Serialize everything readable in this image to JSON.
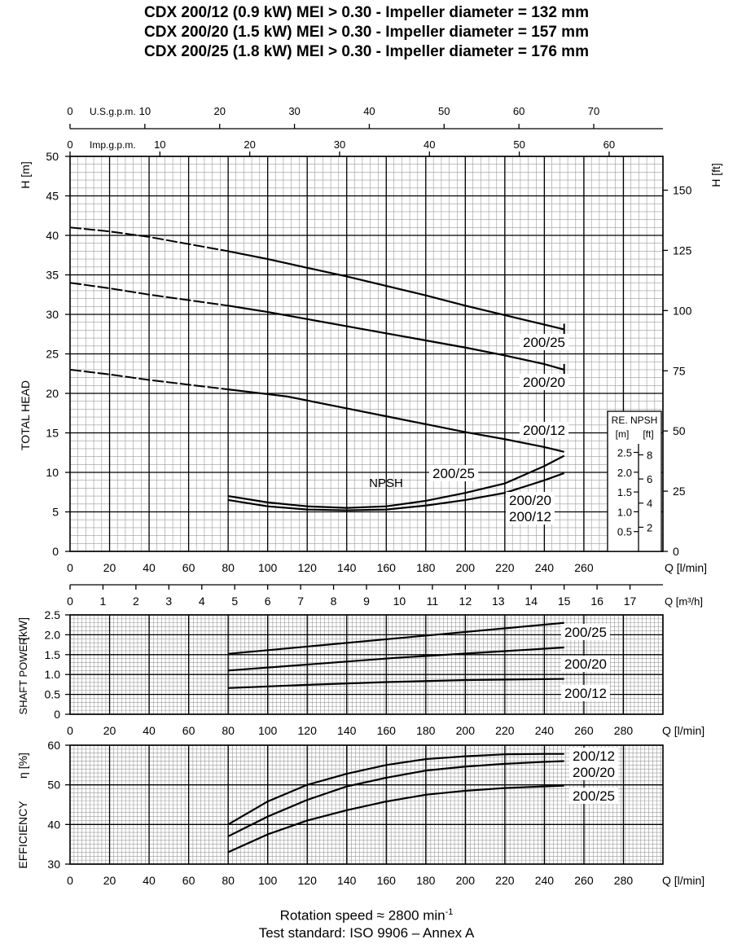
{
  "titles": [
    "CDX 200/12 (0.9 kW) MEI > 0.30 - Impeller diameter = 132 mm",
    "CDX 200/20 (1.5 kW) MEI > 0.30 - Impeller diameter = 157 mm",
    "CDX 200/25 (1.8 kW) MEI > 0.30 - Impeller diameter = 176 mm"
  ],
  "footer": {
    "rotation_prefix": "Rotation speed ≈ 2800 min",
    "rotation_exp": "-1",
    "test_standard": "Test standard: ISO 9906 – Annex A"
  },
  "chart_data": [
    {
      "type": "line",
      "name": "head",
      "ylabel": "TOTAL HEAD",
      "yunit_left": "H [m]",
      "yunit_right": "H [ft]",
      "xlabel": "Q [l/min]",
      "xlim": [
        0,
        300
      ],
      "ylim": [
        0,
        50
      ],
      "yticks": [
        0,
        5,
        10,
        15,
        20,
        25,
        30,
        35,
        40,
        45,
        50
      ],
      "xticks": [
        0,
        20,
        40,
        60,
        80,
        100,
        120,
        140,
        160,
        180,
        200,
        220,
        240,
        260
      ],
      "ft_ticks": [
        0,
        25,
        50,
        75,
        100,
        125,
        150
      ],
      "usgpm_label": "U.S.g.p.m.",
      "usgpm_ticks": [
        0,
        10,
        20,
        30,
        40,
        50,
        60,
        70
      ],
      "impgpm_label": "Imp.g.p.m.",
      "impgpm_ticks": [
        0,
        10,
        20,
        30,
        40,
        50,
        60
      ],
      "m3h_label": "Q [m³/h]",
      "m3h_ticks": [
        0,
        1,
        2,
        3,
        4,
        5,
        6,
        7,
        8,
        9,
        10,
        11,
        12,
        13,
        14,
        15,
        16,
        17
      ],
      "series": [
        {
          "name": "200/25",
          "dashed_until": 80,
          "x": [
            0,
            20,
            40,
            60,
            80,
            100,
            120,
            140,
            160,
            180,
            200,
            220,
            240,
            250
          ],
          "y": [
            41,
            40.5,
            39.8,
            38.9,
            38.0,
            37.0,
            35.9,
            34.8,
            33.6,
            32.4,
            31.1,
            29.9,
            28.7,
            28.1
          ]
        },
        {
          "name": "200/20",
          "dashed_until": 80,
          "x": [
            0,
            20,
            40,
            60,
            80,
            100,
            120,
            140,
            160,
            180,
            200,
            220,
            240,
            250
          ],
          "y": [
            34,
            33.3,
            32.5,
            31.8,
            31.1,
            30.3,
            29.4,
            28.5,
            27.6,
            26.7,
            25.8,
            24.8,
            23.7,
            23.0
          ]
        },
        {
          "name": "200/12",
          "dashed_until": 80,
          "x": [
            0,
            20,
            40,
            60,
            80,
            100,
            110,
            120,
            140,
            160,
            180,
            200,
            220,
            240,
            250
          ],
          "y": [
            23,
            22.4,
            21.7,
            21.1,
            20.5,
            19.9,
            19.6,
            19.1,
            18.1,
            17.1,
            16.1,
            15.1,
            14.2,
            13.2,
            12.6
          ]
        }
      ],
      "npsh": {
        "label": "NPSH",
        "box_title": "RE. NPSH",
        "box_units": [
          "[m]",
          "[ft]"
        ],
        "box_m_ticks": [
          "2.5",
          "2.0",
          "1.5",
          "1.0",
          "0.5"
        ],
        "box_ft_ticks": [
          "8",
          "6",
          "4",
          "2"
        ],
        "series": [
          {
            "name": "200/25",
            "x": [
              80,
              100,
              120,
              140,
              160,
              180,
              200,
              220,
              240,
              250
            ],
            "y": [
              7.0,
              6.2,
              5.7,
              5.5,
              5.7,
              6.4,
              7.4,
              8.6,
              10.8,
              12.1
            ]
          },
          {
            "name": "200/20",
            "x": [
              80,
              100,
              120,
              140,
              160,
              180,
              200,
              220,
              240,
              250
            ],
            "y": [
              6.5,
              5.7,
              5.3,
              5.2,
              5.3,
              5.8,
              6.5,
              7.4,
              9.0,
              9.9
            ]
          },
          {
            "name": "200/12",
            "x": [
              80,
              100,
              120,
              140,
              160,
              180,
              200,
              220,
              240,
              250
            ],
            "y": [
              6.5,
              5.7,
              5.3,
              5.2,
              5.3,
              5.8,
              6.5,
              7.4,
              9.0,
              9.9
            ]
          }
        ]
      }
    },
    {
      "type": "line",
      "name": "power",
      "ylabel": "SHAFT POWER",
      "yunit": "[kW]",
      "xlabel": "Q [l/min]",
      "xlim": [
        0,
        300
      ],
      "ylim": [
        0,
        2.5
      ],
      "yticks": [
        "0",
        "0.5",
        "1.0",
        "1.5",
        "2.0",
        "2.5"
      ],
      "xticks": [
        0,
        20,
        40,
        60,
        80,
        100,
        120,
        140,
        160,
        180,
        200,
        220,
        240,
        260,
        280
      ],
      "series": [
        {
          "name": "200/25",
          "x": [
            80,
            250
          ],
          "y": [
            1.52,
            2.3
          ]
        },
        {
          "name": "200/20",
          "x": [
            80,
            165,
            250
          ],
          "y": [
            1.1,
            1.42,
            1.68
          ]
        },
        {
          "name": "200/12",
          "x": [
            80,
            120,
            160,
            200,
            250
          ],
          "y": [
            0.66,
            0.74,
            0.81,
            0.86,
            0.89
          ]
        }
      ]
    },
    {
      "type": "line",
      "name": "efficiency",
      "ylabel": "EFFICIENCY",
      "yunit": "η [%]",
      "xlabel": "Q [l/min]",
      "xlim": [
        0,
        300
      ],
      "ylim": [
        30,
        60
      ],
      "yticks": [
        30,
        40,
        50,
        60
      ],
      "xticks": [
        0,
        20,
        40,
        60,
        80,
        100,
        120,
        140,
        160,
        180,
        200,
        220,
        240,
        260,
        280
      ],
      "series": [
        {
          "name": "200/12",
          "x": [
            80,
            100,
            120,
            140,
            160,
            180,
            200,
            220,
            240,
            250
          ],
          "y": [
            40.0,
            45.8,
            50.0,
            52.8,
            55.0,
            56.5,
            57.2,
            57.7,
            57.8,
            57.8
          ]
        },
        {
          "name": "200/20",
          "x": [
            80,
            100,
            120,
            140,
            160,
            180,
            200,
            220,
            240,
            250
          ],
          "y": [
            37.0,
            42.0,
            46.2,
            49.6,
            51.8,
            53.6,
            54.6,
            55.3,
            55.8,
            56.0
          ]
        },
        {
          "name": "200/25",
          "x": [
            80,
            100,
            120,
            140,
            160,
            180,
            200,
            220,
            240,
            250
          ],
          "y": [
            33.0,
            37.5,
            41.0,
            43.6,
            45.8,
            47.5,
            48.5,
            49.2,
            49.6,
            49.8
          ]
        }
      ]
    }
  ]
}
